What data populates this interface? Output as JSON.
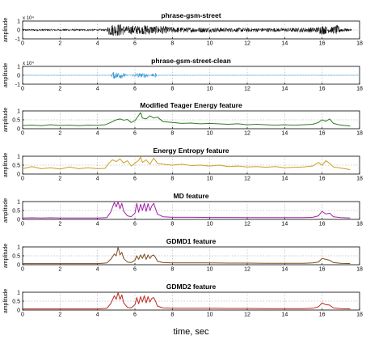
{
  "chart_data": [
    {
      "type": "line",
      "title": "phrase-gsm-street",
      "ylabel": "amplitude",
      "exponent_label": "x 10⁴",
      "color": "#000000",
      "signal_kind": "waveform",
      "xlim": [
        0,
        18
      ],
      "ylim": [
        -1,
        1
      ],
      "x_ticks": [
        "0",
        "2",
        "4",
        "6",
        "8",
        "10",
        "12",
        "14",
        "16",
        "18"
      ],
      "y_ticks": [
        "-1",
        "0",
        "1"
      ],
      "activity_envelope": {
        "x": [
          0,
          4.5,
          4.6,
          5.2,
          5.5,
          6.0,
          6.3,
          6.6,
          7.0,
          7.3,
          8.0,
          9.0,
          10.0,
          11.0,
          12.0,
          13.0,
          14.0,
          15.0,
          15.7,
          16.0,
          16.4,
          16.8,
          17.0,
          17.5
        ],
        "y": [
          0.12,
          0.12,
          0.62,
          0.7,
          0.42,
          0.55,
          0.4,
          0.6,
          0.42,
          0.5,
          0.32,
          0.28,
          0.28,
          0.24,
          0.24,
          0.22,
          0.22,
          0.26,
          0.3,
          0.55,
          0.3,
          0.55,
          0.25,
          0.12
        ]
      }
    },
    {
      "type": "line",
      "title": "phrase-gsm-street-clean",
      "ylabel": "amplitude",
      "exponent_label": "x 10⁴",
      "color": "#1f8fd0",
      "signal_kind": "waveform",
      "xlim": [
        0,
        18
      ],
      "ylim": [
        -1,
        1
      ],
      "x_ticks": [
        "0",
        "2",
        "4",
        "6",
        "8",
        "10",
        "12",
        "14",
        "16",
        "18"
      ],
      "y_ticks": [
        "-1",
        "0",
        "1"
      ],
      "activity_envelope": {
        "x": [
          0,
          4.7,
          4.8,
          5.3,
          5.6,
          5.8,
          6.1,
          6.4,
          6.6,
          6.8,
          7.1,
          7.2,
          18
        ],
        "y": [
          0.02,
          0.02,
          0.38,
          0.35,
          0.05,
          0.05,
          0.3,
          0.22,
          0.3,
          0.05,
          0.28,
          0.02,
          0.02
        ]
      }
    },
    {
      "type": "line",
      "title": "Modified Teager Energy  feature",
      "ylabel": "amplitude",
      "color": "#2a7d1c",
      "signal_kind": "feature",
      "xlim": [
        0,
        18
      ],
      "ylim": [
        0,
        1
      ],
      "x_ticks": [
        "0",
        "2",
        "4",
        "6",
        "8",
        "10",
        "12",
        "14",
        "16",
        "18"
      ],
      "y_ticks": [
        "0",
        "0.5",
        "1"
      ],
      "series": {
        "x": [
          0,
          0.5,
          1,
          1.5,
          2,
          2.5,
          3,
          3.5,
          4,
          4.4,
          4.7,
          5.0,
          5.2,
          5.4,
          5.6,
          5.8,
          6.0,
          6.2,
          6.3,
          6.4,
          6.6,
          6.8,
          7.0,
          7.2,
          7.5,
          8,
          8.5,
          9,
          9.5,
          10,
          10.5,
          11,
          11.5,
          12,
          12.5,
          13,
          13.5,
          14,
          14.5,
          15,
          15.5,
          15.8,
          16.0,
          16.2,
          16.4,
          16.6,
          16.9,
          17.2,
          17.5
        ],
        "y": [
          0.18,
          0.2,
          0.17,
          0.22,
          0.18,
          0.2,
          0.17,
          0.2,
          0.19,
          0.22,
          0.35,
          0.5,
          0.55,
          0.48,
          0.52,
          0.35,
          0.45,
          0.75,
          0.9,
          0.6,
          0.55,
          0.72,
          0.6,
          0.65,
          0.4,
          0.35,
          0.3,
          0.32,
          0.28,
          0.3,
          0.27,
          0.25,
          0.28,
          0.22,
          0.25,
          0.22,
          0.2,
          0.22,
          0.2,
          0.22,
          0.25,
          0.35,
          0.5,
          0.42,
          0.55,
          0.3,
          0.22,
          0.18,
          0.15
        ]
      }
    },
    {
      "type": "line",
      "title": "Energy Entropy feature",
      "ylabel": "amplitude",
      "color": "#caa020",
      "signal_kind": "feature",
      "xlim": [
        0,
        18
      ],
      "ylim": [
        0,
        1
      ],
      "x_ticks": [
        "0",
        "2",
        "4",
        "6",
        "8",
        "10",
        "12",
        "14",
        "16",
        "18"
      ],
      "y_ticks": [
        "0",
        "0.5",
        "1"
      ],
      "series": {
        "x": [
          0,
          0.5,
          1,
          1.5,
          2,
          2.5,
          3,
          3.5,
          4,
          4.4,
          4.6,
          4.8,
          5.0,
          5.2,
          5.4,
          5.6,
          5.8,
          6.0,
          6.2,
          6.3,
          6.4,
          6.6,
          6.8,
          7.0,
          7.2,
          7.5,
          8,
          8.5,
          9,
          9.5,
          10,
          10.5,
          11,
          11.5,
          12,
          12.5,
          13,
          13.5,
          14,
          14.5,
          15,
          15.5,
          15.8,
          16.0,
          16.2,
          16.4,
          16.6,
          16.9,
          17.2,
          17.5
        ],
        "y": [
          0.3,
          0.42,
          0.3,
          0.35,
          0.28,
          0.4,
          0.3,
          0.35,
          0.3,
          0.32,
          0.6,
          0.8,
          0.7,
          0.85,
          0.62,
          0.75,
          0.45,
          0.6,
          0.78,
          0.95,
          0.65,
          0.8,
          0.55,
          0.9,
          0.6,
          0.55,
          0.5,
          0.55,
          0.48,
          0.5,
          0.45,
          0.5,
          0.42,
          0.45,
          0.4,
          0.42,
          0.38,
          0.42,
          0.35,
          0.38,
          0.4,
          0.45,
          0.65,
          0.5,
          0.75,
          0.6,
          0.4,
          0.35,
          0.3,
          0.25
        ]
      }
    },
    {
      "type": "line",
      "title": "MD feature",
      "ylabel": "amplitude",
      "color": "#a020a8",
      "signal_kind": "feature",
      "xlim": [
        0,
        18
      ],
      "ylim": [
        0,
        1
      ],
      "x_ticks": [
        "0",
        "2",
        "4",
        "6",
        "8",
        "10",
        "12",
        "14",
        "16",
        "18"
      ],
      "y_ticks": [
        "0",
        "0.5",
        "1"
      ],
      "series": {
        "x": [
          0,
          0.5,
          1,
          1.5,
          2,
          2.5,
          3,
          3.5,
          4,
          4.5,
          4.7,
          4.9,
          5.0,
          5.1,
          5.2,
          5.3,
          5.4,
          5.6,
          5.8,
          6.0,
          6.1,
          6.2,
          6.3,
          6.4,
          6.5,
          6.6,
          6.7,
          6.8,
          6.9,
          7.0,
          7.1,
          7.2,
          7.5,
          8,
          9,
          10,
          11,
          12,
          13,
          14,
          15,
          15.5,
          15.8,
          16.0,
          16.2,
          16.4,
          16.6,
          17.0,
          17.5
        ],
        "y": [
          0.08,
          0.09,
          0.08,
          0.09,
          0.08,
          0.08,
          0.08,
          0.08,
          0.08,
          0.1,
          0.4,
          0.95,
          0.7,
          0.98,
          0.6,
          0.9,
          0.45,
          0.2,
          0.15,
          0.35,
          0.9,
          0.4,
          0.85,
          0.5,
          0.9,
          0.45,
          0.88,
          0.5,
          0.75,
          0.9,
          0.6,
          0.3,
          0.15,
          0.12,
          0.12,
          0.11,
          0.11,
          0.1,
          0.1,
          0.1,
          0.1,
          0.12,
          0.2,
          0.45,
          0.3,
          0.35,
          0.15,
          0.1,
          0.08
        ]
      }
    },
    {
      "type": "line",
      "title": "GDMD1  feature",
      "ylabel": "amplitude",
      "color": "#7a4a1e",
      "signal_kind": "feature",
      "xlim": [
        0,
        18
      ],
      "ylim": [
        0,
        1
      ],
      "x_ticks": [
        "0",
        "2",
        "4",
        "6",
        "8",
        "10",
        "12",
        "14",
        "16",
        "18"
      ],
      "y_ticks": [
        "0",
        "0.5",
        "1"
      ],
      "series": {
        "x": [
          0,
          0.5,
          1,
          1.5,
          2,
          2.5,
          3,
          3.5,
          4,
          4.5,
          4.7,
          4.9,
          5.0,
          5.1,
          5.2,
          5.3,
          5.4,
          5.6,
          5.8,
          6.0,
          6.1,
          6.2,
          6.3,
          6.4,
          6.5,
          6.6,
          6.7,
          6.8,
          6.9,
          7.0,
          7.1,
          7.2,
          7.5,
          8,
          9,
          10,
          11,
          12,
          13,
          14,
          15,
          15.5,
          15.8,
          16.0,
          16.2,
          16.4,
          16.6,
          17.0,
          17.5
        ],
        "y": [
          0.06,
          0.06,
          0.06,
          0.06,
          0.06,
          0.06,
          0.06,
          0.06,
          0.06,
          0.1,
          0.3,
          0.6,
          0.5,
          0.98,
          0.55,
          0.7,
          0.35,
          0.15,
          0.12,
          0.25,
          0.5,
          0.3,
          0.55,
          0.35,
          0.6,
          0.3,
          0.55,
          0.35,
          0.5,
          0.55,
          0.4,
          0.2,
          0.12,
          0.1,
          0.1,
          0.1,
          0.09,
          0.09,
          0.08,
          0.08,
          0.08,
          0.1,
          0.15,
          0.35,
          0.3,
          0.25,
          0.12,
          0.08,
          0.06
        ]
      }
    },
    {
      "type": "line",
      "title": "GDMD2  feature",
      "ylabel": "amplitude",
      "color": "#c0281e",
      "signal_kind": "feature",
      "xlim": [
        0,
        18
      ],
      "ylim": [
        0,
        1
      ],
      "x_ticks": [
        "0",
        "2",
        "4",
        "6",
        "8",
        "10",
        "12",
        "14",
        "16",
        "18"
      ],
      "y_ticks": [
        "0",
        "0.5",
        "1"
      ],
      "series": {
        "x": [
          0,
          0.5,
          1,
          1.5,
          2,
          2.5,
          3,
          3.5,
          4,
          4.5,
          4.7,
          4.9,
          5.0,
          5.1,
          5.2,
          5.3,
          5.4,
          5.6,
          5.8,
          6.0,
          6.1,
          6.2,
          6.3,
          6.4,
          6.5,
          6.6,
          6.7,
          6.8,
          6.9,
          7.0,
          7.1,
          7.2,
          7.5,
          8,
          9,
          10,
          11,
          12,
          13,
          14,
          15,
          15.5,
          15.8,
          16.0,
          16.2,
          16.4,
          16.6,
          17.0,
          17.5
        ],
        "y": [
          0.06,
          0.06,
          0.06,
          0.06,
          0.06,
          0.06,
          0.06,
          0.06,
          0.06,
          0.1,
          0.35,
          0.8,
          0.6,
          0.98,
          0.6,
          0.85,
          0.4,
          0.15,
          0.12,
          0.3,
          0.7,
          0.35,
          0.75,
          0.45,
          0.8,
          0.4,
          0.75,
          0.45,
          0.65,
          0.7,
          0.5,
          0.22,
          0.12,
          0.1,
          0.1,
          0.1,
          0.09,
          0.09,
          0.08,
          0.08,
          0.08,
          0.1,
          0.18,
          0.4,
          0.3,
          0.28,
          0.12,
          0.08,
          0.06
        ]
      }
    }
  ],
  "xlabel": "time, sec"
}
